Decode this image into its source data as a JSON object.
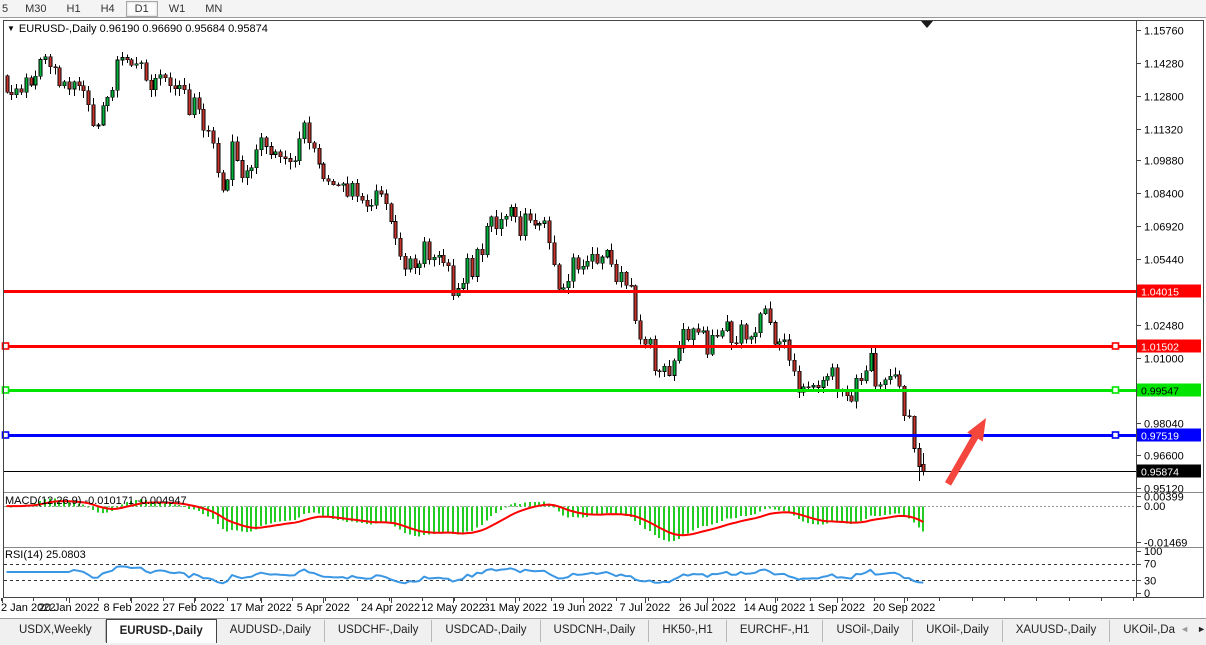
{
  "toolbar": {
    "partial_left_label": "5",
    "timeframes": [
      "M30",
      "H1",
      "H4",
      "D1",
      "W1",
      "MN"
    ],
    "active_timeframe": "D1"
  },
  "chart": {
    "dropdown_icon": "▼",
    "title_symbol": "EURUSD-,Daily",
    "title_ohlc": "0.96190 0.96690 0.95684 0.95874"
  },
  "chart_data": {
    "type": "candlestick",
    "symbol": "EURUSD-",
    "period": "Daily",
    "last_bar": {
      "open": 0.9619,
      "high": 0.9669,
      "low": 0.95684,
      "close": 0.95874
    },
    "price_axis_ticks": [
      1.1576,
      1.1428,
      1.128,
      1.1132,
      1.0988,
      1.084,
      1.0692,
      1.0544,
      1.0248,
      1.01,
      0.9804,
      0.966,
      0.9512
    ],
    "price_axis_range": [
      0.9512,
      1.1576
    ],
    "candles": {
      "first_open": 1.137,
      "wick_low_override": {
        "index": 190,
        "low": 0.9543
      },
      "closes": [
        1.1295,
        1.1285,
        1.1312,
        1.1295,
        1.136,
        1.1328,
        1.1367,
        1.1443,
        1.1455,
        1.1411,
        1.1406,
        1.1325,
        1.1343,
        1.131,
        1.1343,
        1.1325,
        1.1302,
        1.124,
        1.1144,
        1.1148,
        1.1235,
        1.1273,
        1.1305,
        1.1441,
        1.1452,
        1.1442,
        1.1417,
        1.1424,
        1.1428,
        1.135,
        1.1306,
        1.1358,
        1.1375,
        1.1361,
        1.1324,
        1.1311,
        1.1327,
        1.1307,
        1.1194,
        1.127,
        1.1218,
        1.1125,
        1.1122,
        1.1066,
        1.0932,
        1.0854,
        1.0901,
        1.1073,
        1.0988,
        1.0911,
        1.0941,
        1.0955,
        1.1036,
        1.109,
        1.1051,
        1.1015,
        1.1028,
        1.1004,
        1.0997,
        1.0982,
        1.0986,
        1.1086,
        1.1158,
        1.1067,
        1.1044,
        1.0972,
        1.0905,
        1.0895,
        1.0879,
        1.0876,
        1.0883,
        1.0827,
        1.0886,
        1.0827,
        1.0808,
        1.0781,
        1.0786,
        1.0852,
        1.0837,
        1.0793,
        1.0713,
        1.0637,
        1.0557,
        1.0499,
        1.0545,
        1.0505,
        1.0522,
        1.0622,
        1.054,
        1.0551,
        1.056,
        1.0528,
        1.0513,
        1.0379,
        1.0411,
        1.0434,
        1.0547,
        1.0465,
        1.0588,
        1.0563,
        1.0692,
        1.0734,
        1.068,
        1.0724,
        1.0736,
        1.0778,
        1.0734,
        1.0649,
        1.0747,
        1.0719,
        1.0697,
        1.0704,
        1.0716,
        1.0617,
        1.0518,
        1.0408,
        1.0415,
        1.0444,
        1.055,
        1.0498,
        1.0511,
        1.0533,
        1.0566,
        1.0524,
        1.0553,
        1.0583,
        1.052,
        1.0442,
        1.0484,
        1.0426,
        1.0423,
        1.0266,
        1.0183,
        1.016,
        1.0182,
        1.004,
        1.0037,
        1.006,
        1.0019,
        1.0086,
        1.0143,
        1.0227,
        1.018,
        1.0229,
        1.0213,
        1.022,
        1.0115,
        1.02,
        1.0196,
        1.0221,
        1.0261,
        1.0166,
        1.0165,
        1.0247,
        1.0182,
        1.0193,
        1.0212,
        1.0298,
        1.032,
        1.0258,
        1.016,
        1.0171,
        1.0179,
        1.0088,
        1.0039,
        0.9943,
        0.9969,
        0.9967,
        0.9975,
        0.9965,
        0.9998,
        1.0016,
        1.0054,
        0.9946,
        0.9953,
        0.9928,
        0.9903,
        1.0006,
        0.9996,
        1.004,
        1.012,
        0.997,
        0.9978,
        0.9999,
        1.0015,
        1.0023,
        0.997,
        0.9838,
        0.9835,
        0.969,
        0.9609,
        0.9587
      ]
    },
    "date_ticks": [
      {
        "label": "2 Jan 2022",
        "bar": -1
      },
      {
        "label": "20 Jan 2022",
        "bar": 13
      },
      {
        "label": "8 Feb 2022",
        "bar": 26
      },
      {
        "label": "27 Feb 2022",
        "bar": 39
      },
      {
        "label": "17 Mar 2022",
        "bar": 53
      },
      {
        "label": "5 Apr 2022",
        "bar": 66
      },
      {
        "label": "24 Apr 2022",
        "bar": 80
      },
      {
        "label": "12 May 2022",
        "bar": 93
      },
      {
        "label": "31 May 2022",
        "bar": 106
      },
      {
        "label": "19 Jun 2022",
        "bar": 120
      },
      {
        "label": "7 Jul 2022",
        "bar": 133
      },
      {
        "label": "26 Jul 2022",
        "bar": 146
      },
      {
        "label": "14 Aug 2022",
        "bar": 160
      },
      {
        "label": "1 Sep 2022",
        "bar": 173
      },
      {
        "label": "20 Sep 2022",
        "bar": 187
      }
    ],
    "hlines": [
      {
        "price": 1.04015,
        "label": "1.04015",
        "color": "#ff0000",
        "text_color": "#ffffff",
        "handles": false
      },
      {
        "price": 1.01502,
        "label": "1.01502",
        "color": "#ff0000",
        "text_color": "#ffffff",
        "handles": true
      },
      {
        "price": 0.99547,
        "label": "0.99547",
        "color": "#00e400",
        "text_color": "#000000",
        "handles": true
      },
      {
        "price": 0.97519,
        "label": "0.97519",
        "color": "#0000ff",
        "text_color": "#ffffff",
        "handles": true
      }
    ],
    "current_price": {
      "value": 0.95874,
      "label": "0.95874",
      "line_color": "#000000"
    },
    "macd": {
      "label": "MACD(12,26,9) -0.010171 -0.004947",
      "fast": 12,
      "slow": 26,
      "signal": 9,
      "main_value": -0.010171,
      "signal_value": -0.004947,
      "axis_labels": [
        {
          "text": "0.00399",
          "value": 0.00399
        },
        {
          "text": "0.00",
          "value": 0
        },
        {
          "text": "-0.01469",
          "value": -0.01469
        }
      ],
      "scale": [
        -0.0162,
        0.0045
      ],
      "histogram_color": "#22cc22",
      "signal_color": "#ff0000"
    },
    "rsi": {
      "label": "RSI(14) 25.0803",
      "period": 14,
      "value": 25.0803,
      "levels": [
        70,
        30
      ],
      "axis_labels": [
        100,
        70,
        30,
        0
      ],
      "line_color": "#3b97e3"
    },
    "colors": {
      "bull": "#00b43c",
      "bear": "#c8332b",
      "outline": "#000000",
      "background": "#ffffff"
    },
    "arrow_annotation": {
      "color": "#f4463c",
      "direction": "up-right"
    },
    "chart_shift_marker": "▼"
  },
  "tabs": {
    "items": [
      "USDX,Weekly",
      "EURUSD-,Daily",
      "AUDUSD-,Daily",
      "USDCHF-,Daily",
      "USDCAD-,Daily",
      "USDCNH-,Daily",
      "HK50-,H1",
      "EURCHF-,H1",
      "USOil-,Daily",
      "UKOil-,Daily",
      "XAUUSD-,Daily",
      "UKOil-,Da"
    ],
    "active_index": 1,
    "scroll_left_icon": "◄",
    "scroll_right_icon": "►"
  }
}
